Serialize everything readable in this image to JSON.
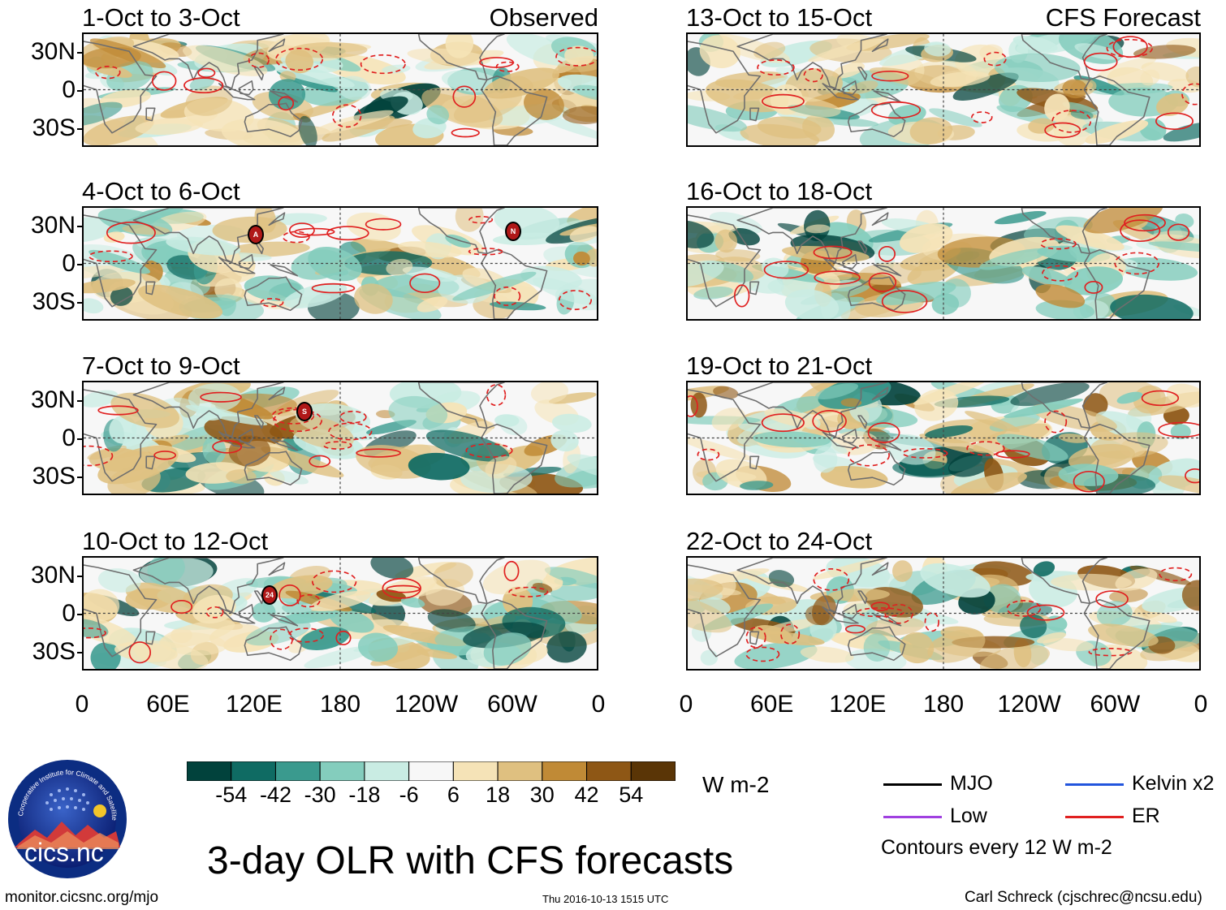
{
  "figure": {
    "title": "3-day OLR with CFS forecasts",
    "units": "W m-2",
    "website": "monitor.cicsnc.org/mjo",
    "timestamp": "Thu 2016-10-13 1515 UTC",
    "author": "Carl Schreck (cjschrec@ncsu.edu)",
    "logo_text": "cics.nc",
    "logo_ring_text": "Cooperative Institute for Climate and Satellites"
  },
  "axes": {
    "lat_labels": [
      "30N",
      "0",
      "30S"
    ],
    "lon_labels": [
      "0",
      "60E",
      "120E",
      "180",
      "120W",
      "60W",
      "0"
    ]
  },
  "panels": [
    {
      "title": "1-Oct to 3-Oct",
      "label": "Observed",
      "column": "left",
      "row": 0
    },
    {
      "title": "4-Oct to 6-Oct",
      "label": "",
      "column": "left",
      "row": 1
    },
    {
      "title": "7-Oct to 9-Oct",
      "label": "",
      "column": "left",
      "row": 2
    },
    {
      "title": "10-Oct to 12-Oct",
      "label": "",
      "column": "left",
      "row": 3
    },
    {
      "title": "13-Oct to 15-Oct",
      "label": "CFS Forecast",
      "column": "right",
      "row": 0
    },
    {
      "title": "16-Oct to 18-Oct",
      "label": "",
      "column": "right",
      "row": 1
    },
    {
      "title": "19-Oct to 21-Oct",
      "label": "",
      "column": "right",
      "row": 2
    },
    {
      "title": "22-Oct to 24-Oct",
      "label": "",
      "column": "right",
      "row": 3
    }
  ],
  "colorbar": {
    "tick_labels": [
      "-54",
      "-42",
      "-30",
      "-18",
      "-6",
      "6",
      "18",
      "30",
      "42",
      "54"
    ],
    "colors": [
      "#01423c",
      "#0f6b63",
      "#3a9a8e",
      "#84cdbd",
      "#c9ece3",
      "#f7f7f7",
      "#f5e3b7",
      "#dfc080",
      "#c08a36",
      "#8e5715",
      "#5a3506"
    ]
  },
  "legend": {
    "items": [
      {
        "label": "MJO",
        "color": "#000000"
      },
      {
        "label": "Kelvin x2",
        "color": "#2255dd"
      },
      {
        "label": "Low",
        "color": "#a040e0"
      },
      {
        "label": "ER",
        "color": "#e02020"
      }
    ],
    "contour_note": "Contours every 12 W m-2"
  },
  "storm_markers": [
    {
      "panel": 1,
      "label": "A"
    },
    {
      "panel": 1,
      "label": "N"
    },
    {
      "panel": 2,
      "label": "S"
    },
    {
      "panel": 3,
      "label": "24"
    }
  ]
}
